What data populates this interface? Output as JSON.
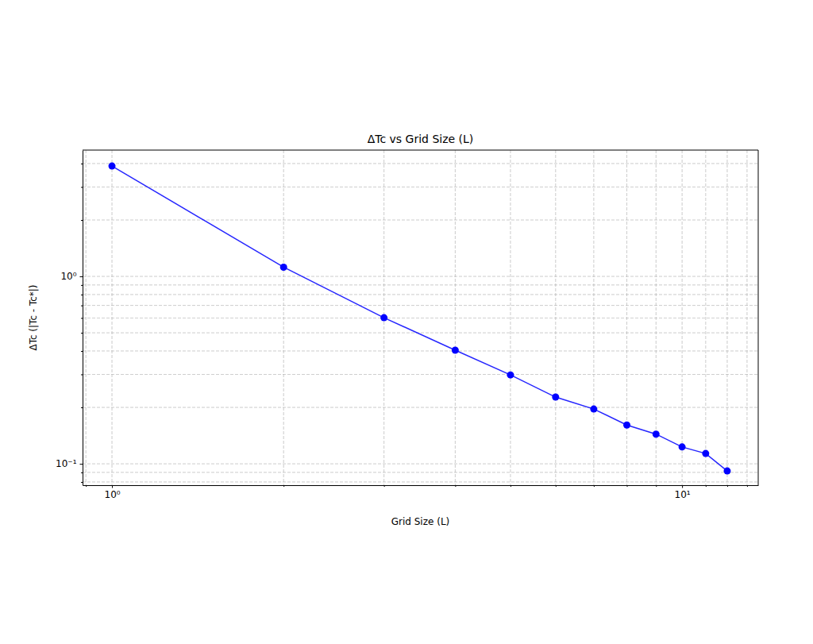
{
  "chart_data": {
    "type": "line",
    "title": "ΔTc vs Grid Size (L)",
    "x_label": "Grid Size (L)",
    "y_label": "ΔTc (|Tc - Tc*|)",
    "x": [
      1,
      2,
      3,
      4,
      5,
      6,
      7,
      8,
      9,
      10,
      11,
      12
    ],
    "values": [
      3.88,
      1.12,
      0.602,
      0.404,
      0.298,
      0.227,
      0.196,
      0.161,
      0.144,
      0.123,
      0.1135,
      0.0916
    ],
    "color": "#0000ff",
    "marker": "o",
    "line_style": "solid",
    "log": true,
    "grid": true,
    "xlim": [
      0.888,
      13.6
    ],
    "ylim": [
      0.0769,
      4.72
    ],
    "xticks": [
      {
        "value": 0.9,
        "label": null
      },
      {
        "value": 1,
        "label": "10⁰"
      },
      {
        "value": 2,
        "label": null
      },
      {
        "value": 3,
        "label": null
      },
      {
        "value": 4,
        "label": null
      },
      {
        "value": 5,
        "label": null
      },
      {
        "value": 6,
        "label": null
      },
      {
        "value": 7,
        "label": null
      },
      {
        "value": 8,
        "label": null
      },
      {
        "value": 9,
        "label": null
      },
      {
        "value": 10,
        "label": "10¹"
      },
      {
        "value": 11,
        "label": null
      },
      {
        "value": 12,
        "label": null
      },
      {
        "value": 13,
        "label": null
      }
    ],
    "yticks": [
      {
        "value": 0.08,
        "label": null
      },
      {
        "value": 0.09,
        "label": null
      },
      {
        "value": 0.1,
        "label": "10⁻¹"
      },
      {
        "value": 0.2,
        "label": null
      },
      {
        "value": 0.3,
        "label": null
      },
      {
        "value": 0.4,
        "label": null
      },
      {
        "value": 0.5,
        "label": null
      },
      {
        "value": 0.6,
        "label": null
      },
      {
        "value": 0.7,
        "label": null
      },
      {
        "value": 0.8,
        "label": null
      },
      {
        "value": 0.9,
        "label": null
      },
      {
        "value": 1,
        "label": "10⁰"
      },
      {
        "value": 2,
        "label": null
      },
      {
        "value": 3,
        "label": null
      },
      {
        "value": 4,
        "label": null
      }
    ]
  }
}
